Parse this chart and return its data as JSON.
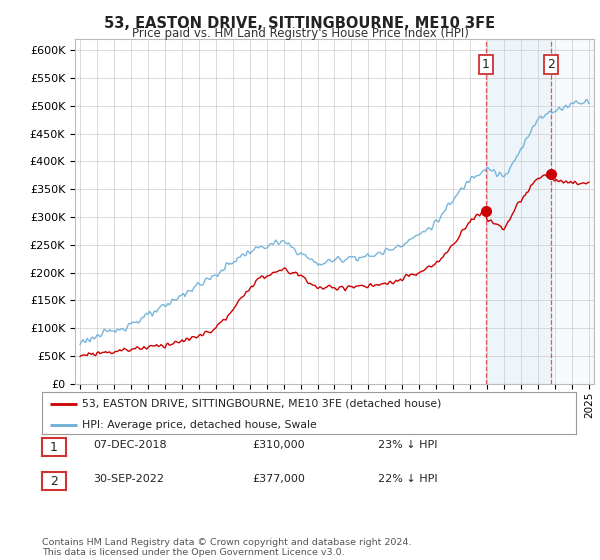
{
  "title": "53, EASTON DRIVE, SITTINGBOURNE, ME10 3FE",
  "subtitle": "Price paid vs. HM Land Registry's House Price Index (HPI)",
  "ylim": [
    0,
    620000
  ],
  "yticks": [
    0,
    50000,
    100000,
    150000,
    200000,
    250000,
    300000,
    350000,
    400000,
    450000,
    500000,
    550000,
    600000
  ],
  "ytick_labels": [
    "£0",
    "£50K",
    "£100K",
    "£150K",
    "£200K",
    "£250K",
    "£300K",
    "£350K",
    "£400K",
    "£450K",
    "£500K",
    "£550K",
    "£600K"
  ],
  "hpi_color": "#6baed6",
  "price_color": "#cc0000",
  "marker1_x": 2018.92,
  "marker1_y": 310000,
  "marker2_x": 2022.75,
  "marker2_y": 377000,
  "legend_label1": "53, EASTON DRIVE, SITTINGBOURNE, ME10 3FE (detached house)",
  "legend_label2": "HPI: Average price, detached house, Swale",
  "table_row1": [
    "1",
    "07-DEC-2018",
    "£310,000",
    "23% ↓ HPI"
  ],
  "table_row2": [
    "2",
    "30-SEP-2022",
    "£377,000",
    "22% ↓ HPI"
  ],
  "footnote": "Contains HM Land Registry data © Crown copyright and database right 2024.\nThis data is licensed under the Open Government Licence v3.0.",
  "background_color": "#ffffff",
  "grid_color": "#cccccc",
  "vline1_x": 2018.92,
  "vline2_x": 2022.75,
  "xmin": 1994.7,
  "xmax": 2025.3,
  "hpi_anchors_x": [
    1995,
    1996,
    1997,
    1998,
    1999,
    2000,
    2001,
    2002,
    2003,
    2004,
    2005,
    2006,
    2007,
    2008,
    2009,
    2010,
    2011,
    2012,
    2013,
    2014,
    2015,
    2016,
    2017,
    2018,
    2019,
    2020,
    2021,
    2022,
    2023,
    2024,
    2025
  ],
  "hpi_anchors_y": [
    75000,
    85000,
    95000,
    108000,
    122000,
    138000,
    160000,
    178000,
    195000,
    220000,
    238000,
    248000,
    255000,
    235000,
    215000,
    222000,
    228000,
    228000,
    238000,
    252000,
    268000,
    290000,
    330000,
    370000,
    390000,
    370000,
    420000,
    480000,
    490000,
    505000,
    510000
  ],
  "price_anchors_x": [
    1995,
    1996,
    1997,
    1998,
    1999,
    2000,
    2001,
    2002,
    2003,
    2004,
    2005,
    2006,
    2007,
    2008,
    2009,
    2010,
    2011,
    2012,
    2013,
    2014,
    2015,
    2016,
    2017,
    2018,
    2018.92,
    2019,
    2020,
    2021,
    2022,
    2022.75,
    2023,
    2024,
    2025
  ],
  "price_anchors_y": [
    50000,
    55000,
    58000,
    62000,
    66000,
    70000,
    76000,
    85000,
    100000,
    130000,
    175000,
    195000,
    205000,
    195000,
    172000,
    172000,
    175000,
    175000,
    178000,
    188000,
    200000,
    215000,
    250000,
    295000,
    310000,
    295000,
    280000,
    330000,
    370000,
    377000,
    365000,
    360000,
    362000
  ]
}
